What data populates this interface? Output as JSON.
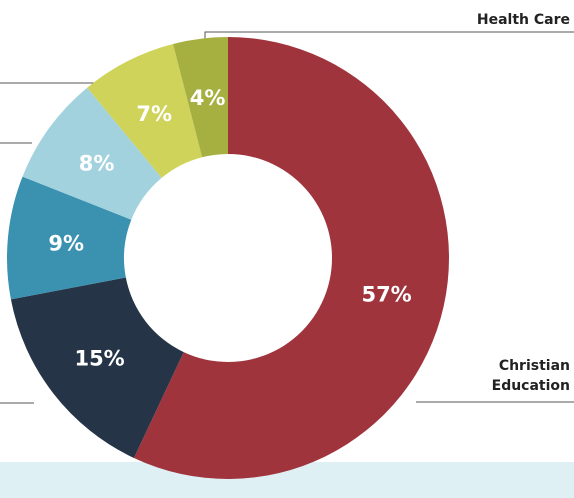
{
  "chart_data": {
    "type": "donut",
    "categories": [
      "Christian Education",
      null,
      null,
      null,
      null,
      "Health Care"
    ],
    "values": [
      57,
      15,
      9,
      8,
      7,
      4
    ],
    "value_labels": [
      "57%",
      "15%",
      "9%",
      "8%",
      "7%",
      "4%"
    ],
    "colors": [
      "#a0343d",
      "#253447",
      "#3a91b0",
      "#a3d2df",
      "#cfd35a",
      "#a6b040"
    ]
  }
}
